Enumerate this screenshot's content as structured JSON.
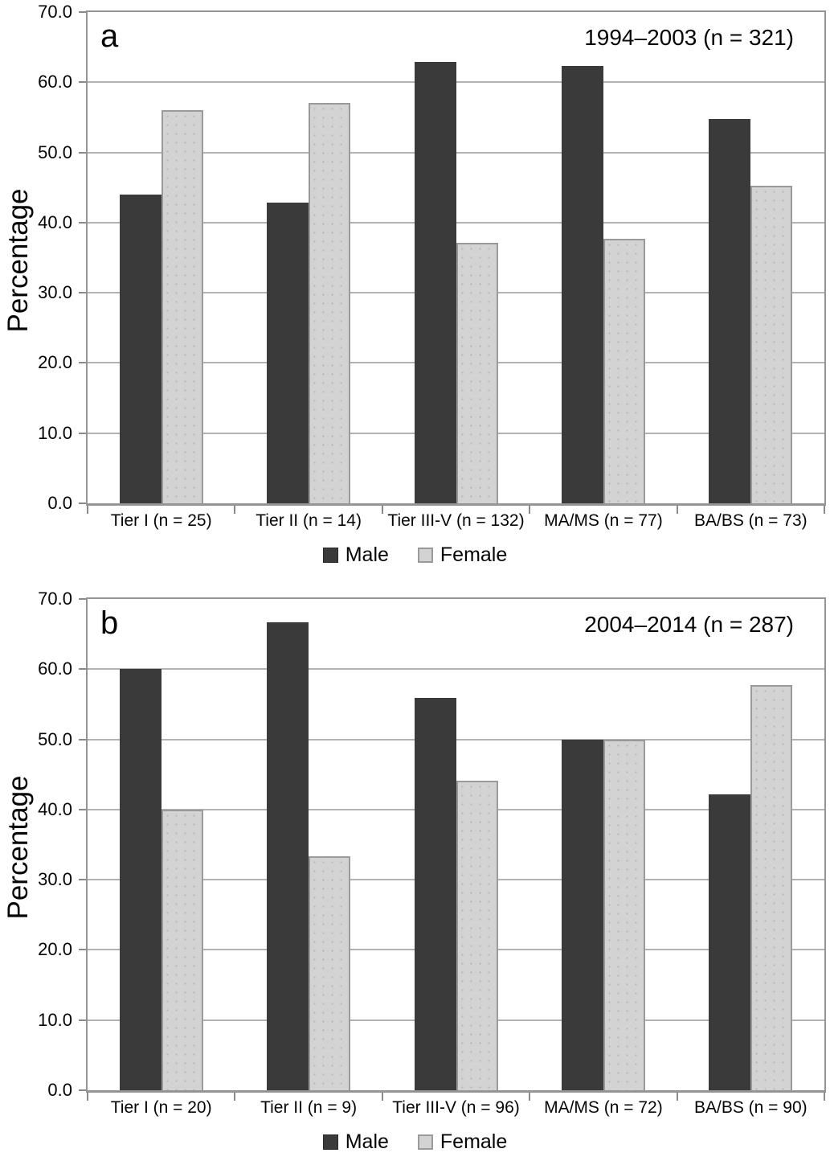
{
  "colors": {
    "male": "#3a3a3a",
    "female": "#d3d3d3",
    "female_border": "#9a9a9a",
    "grid": "#b3b3b3",
    "frame": "#959595",
    "axis": "#8a8a8a"
  },
  "chart_data": [
    {
      "type": "bar",
      "panel_label": "a",
      "title": "1994–2003 (n = 321)",
      "ylabel": "Percentage",
      "categories": [
        "Tier I (n = 25)",
        "Tier II (n = 14)",
        "Tier III-V (n = 132)",
        "MA/MS (n = 77)",
        "BA/BS (n = 73)"
      ],
      "series": [
        {
          "name": "Male",
          "color_key": "male",
          "values": [
            44.0,
            42.9,
            62.9,
            62.3,
            54.8
          ]
        },
        {
          "name": "Female",
          "color_key": "female",
          "values": [
            56.0,
            57.1,
            37.1,
            37.7,
            45.2
          ]
        }
      ],
      "ylim": [
        0,
        70
      ],
      "yticks": [
        "70.0",
        "60.0",
        "50.0",
        "40.0",
        "30.0",
        "20.0",
        "10.0",
        "0.0"
      ],
      "grid": true,
      "legend_position": "bottom"
    },
    {
      "type": "bar",
      "panel_label": "b",
      "title": "2004–2014 (n = 287)",
      "ylabel": "Percentage",
      "categories": [
        "Tier I (n = 20)",
        "Tier II (n = 9)",
        "Tier III-V (n = 96)",
        "MA/MS (n = 72)",
        "BA/BS (n = 90)"
      ],
      "series": [
        {
          "name": "Male",
          "color_key": "male",
          "values": [
            60.0,
            66.7,
            55.9,
            50.0,
            42.2
          ]
        },
        {
          "name": "Female",
          "color_key": "female",
          "values": [
            40.0,
            33.3,
            44.1,
            50.0,
            57.8
          ]
        }
      ],
      "ylim": [
        0,
        70
      ],
      "yticks": [
        "70.0",
        "60.0",
        "50.0",
        "40.0",
        "30.0",
        "20.0",
        "10.0",
        "0.0"
      ],
      "grid": true,
      "legend_position": "bottom"
    }
  ]
}
